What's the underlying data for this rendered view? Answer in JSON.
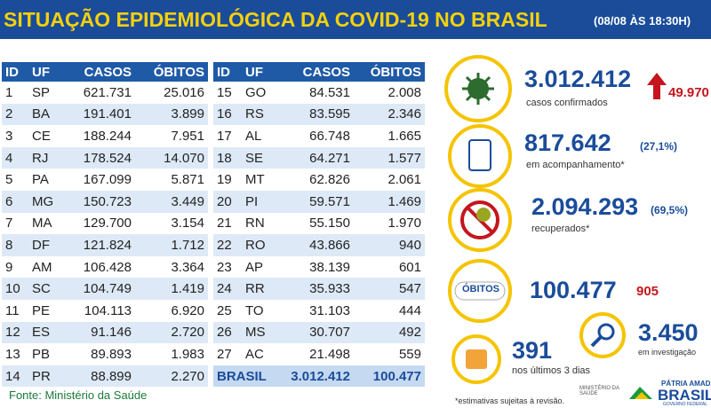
{
  "header": {
    "title": "SITUAÇÃO EPIDEMIOLÓGICA DA COVID-19 NO BRASIL",
    "date": "(08/08 ÀS 18:30H)"
  },
  "tables": [
    {
      "columns": [
        "ID",
        "UF",
        "CASOS",
        "ÓBITOS"
      ],
      "rows": [
        [
          "1",
          "SP",
          "621.731",
          "25.016"
        ],
        [
          "2",
          "BA",
          "191.401",
          "3.899"
        ],
        [
          "3",
          "CE",
          "188.244",
          "7.951"
        ],
        [
          "4",
          "RJ",
          "178.524",
          "14.070"
        ],
        [
          "5",
          "PA",
          "167.099",
          "5.871"
        ],
        [
          "6",
          "MG",
          "150.723",
          "3.449"
        ],
        [
          "7",
          "MA",
          "129.700",
          "3.154"
        ],
        [
          "8",
          "DF",
          "121.824",
          "1.712"
        ],
        [
          "9",
          "AM",
          "106.428",
          "3.364"
        ],
        [
          "10",
          "SC",
          "104.749",
          "1.419"
        ],
        [
          "11",
          "PE",
          "104.113",
          "6.920"
        ],
        [
          "12",
          "ES",
          "91.146",
          "2.720"
        ],
        [
          "13",
          "PB",
          "89.893",
          "1.983"
        ],
        [
          "14",
          "PR",
          "88.899",
          "2.270"
        ]
      ]
    },
    {
      "columns": [
        "ID",
        "UF",
        "CASOS",
        "ÓBITOS"
      ],
      "rows": [
        [
          "15",
          "GO",
          "84.531",
          "2.008"
        ],
        [
          "16",
          "RS",
          "83.595",
          "2.346"
        ],
        [
          "17",
          "AL",
          "66.748",
          "1.665"
        ],
        [
          "18",
          "SE",
          "64.271",
          "1.577"
        ],
        [
          "19",
          "MT",
          "62.826",
          "2.061"
        ],
        [
          "20",
          "PI",
          "59.571",
          "1.469"
        ],
        [
          "21",
          "RN",
          "55.150",
          "1.970"
        ],
        [
          "22",
          "RO",
          "43.866",
          "940"
        ],
        [
          "23",
          "AP",
          "38.139",
          "601"
        ],
        [
          "24",
          "RR",
          "35.933",
          "547"
        ],
        [
          "25",
          "TO",
          "31.103",
          "444"
        ],
        [
          "26",
          "MS",
          "30.707",
          "492"
        ],
        [
          "27",
          "AC",
          "21.498",
          "559"
        ]
      ],
      "total": {
        "label": "BRASIL",
        "casos": "3.012.412",
        "obitos": "100.477"
      }
    }
  ],
  "source": "Fonte: Ministério da Saúde",
  "stats": {
    "confirmed": {
      "value": "3.012.412",
      "increase": "49.970",
      "label": "casos confirmados"
    },
    "monitoring": {
      "value": "817.642",
      "percent": "(27,1%)",
      "label": "em acompanhamento*"
    },
    "recovered": {
      "value": "2.094.293",
      "percent": "(69,5%)",
      "label": "recuperados*"
    },
    "deaths": {
      "badge": "ÓBITOS",
      "value": "100.477",
      "increase": "905"
    },
    "last3days": {
      "value": "391",
      "label": "nos últimos 3 dias"
    },
    "investigation": {
      "value": "3.450",
      "label": "em investigação"
    }
  },
  "footer": {
    "note": "*estimativas sujeitas à revisão.",
    "ministry": "MINISTÉRIO DA SAÚDE",
    "slogan": "PÁTRIA AMADA",
    "brand": "BRASIL",
    "gov": "GOVERNO FEDERAL"
  }
}
